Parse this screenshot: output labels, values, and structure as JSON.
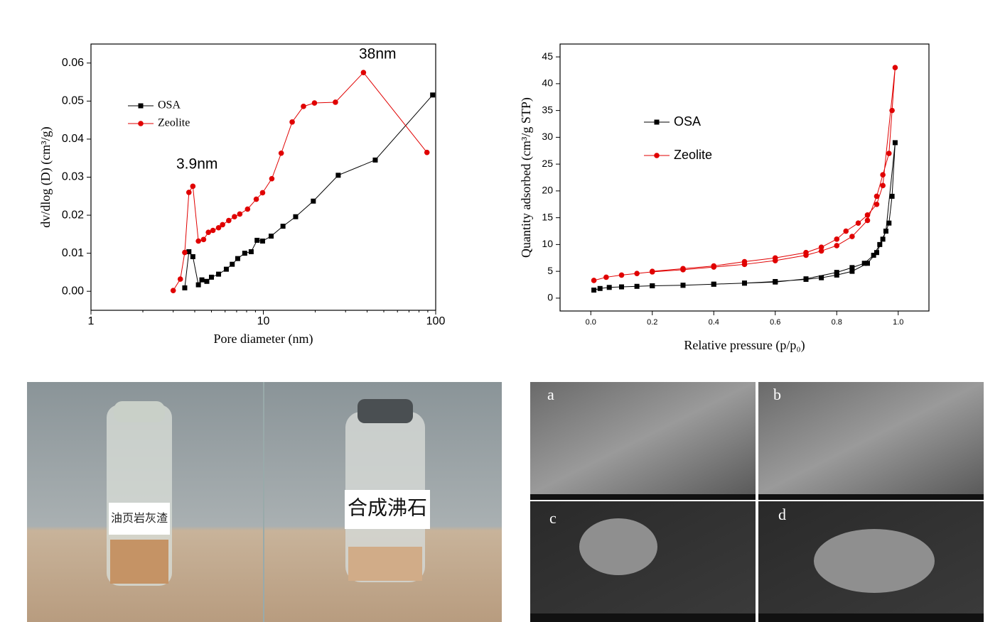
{
  "chart_data": [
    {
      "type": "line",
      "xscale": "log",
      "xlabel": "Pore diameter (nm)",
      "ylabel": "dv/dlog (D) (cm³/g)",
      "xlim": [
        1,
        100
      ],
      "xticks": [
        1,
        10,
        100
      ],
      "ylim": [
        -0.005,
        0.065
      ],
      "yticks": [
        {
          "value": 0,
          "label": "0.00"
        },
        {
          "value": 0.01,
          "label": "0.01"
        },
        {
          "value": 0.02,
          "label": "0.02"
        },
        {
          "value": 0.03,
          "label": "0.03"
        },
        {
          "value": 0.04,
          "label": "0.04"
        },
        {
          "value": 0.05,
          "label": "0.05"
        },
        {
          "value": 0.06,
          "label": "0.06"
        }
      ],
      "legend": "upper left",
      "annotations": [
        "3.9nm",
        "38nm"
      ],
      "series": [
        {
          "name": "OSA",
          "color": "#000000",
          "marker": "square",
          "x": [
            3.5,
            3.7,
            3.9,
            4.2,
            4.4,
            4.7,
            5.0,
            5.5,
            6.1,
            6.6,
            7.1,
            7.8,
            8.5,
            9.2,
            9.9,
            11.1,
            13.0,
            15.4,
            19.5,
            27.2,
            44.6,
            96
          ],
          "values": [
            0.0009,
            0.0104,
            0.0091,
            0.0017,
            0.003,
            0.0026,
            0.0037,
            0.0045,
            0.0058,
            0.0071,
            0.0086,
            0.01,
            0.0104,
            0.0134,
            0.0132,
            0.0145,
            0.0171,
            0.0196,
            0.0237,
            0.0305,
            0.0345,
            0.0516
          ]
        },
        {
          "name": "Zeolite",
          "color": "#e00000",
          "marker": "circle",
          "x": [
            3.0,
            3.3,
            3.5,
            3.7,
            3.9,
            4.2,
            4.5,
            4.8,
            5.1,
            5.5,
            5.8,
            6.3,
            6.8,
            7.3,
            8.1,
            9.1,
            9.9,
            11.2,
            12.7,
            14.7,
            17.1,
            19.8,
            26.2,
            38.1,
            89
          ],
          "values": [
            0.0002,
            0.0032,
            0.0102,
            0.026,
            0.0276,
            0.0132,
            0.0136,
            0.0155,
            0.016,
            0.0167,
            0.0175,
            0.0186,
            0.0196,
            0.0203,
            0.0216,
            0.0242,
            0.0259,
            0.0296,
            0.0363,
            0.0445,
            0.0486,
            0.0495,
            0.0497,
            0.0575,
            0.0365
          ]
        }
      ]
    },
    {
      "type": "line",
      "xscale": "linear",
      "xlabel": "Relative pressure (p/p₀)",
      "ylabel": "Quantity adsorbed (cm³/g STP)",
      "xlim": [
        -0.1,
        1.1
      ],
      "xticks": [
        {
          "value": 0,
          "label": "0.0"
        },
        {
          "value": 0.2,
          "label": "0.2"
        },
        {
          "value": 0.4,
          "label": "0.4"
        },
        {
          "value": 0.6,
          "label": "0.6"
        },
        {
          "value": 0.8,
          "label": "0.8"
        },
        {
          "value": 1,
          "label": "1.0"
        }
      ],
      "ylim": [
        -2.4,
        47.4
      ],
      "yticks": [
        0,
        5,
        10,
        15,
        20,
        25,
        30,
        35,
        40,
        45
      ],
      "legend": "center left",
      "series": [
        {
          "name": "OSA",
          "color": "#000000",
          "marker": "square",
          "x": [
            0.01,
            0.03,
            0.06,
            0.1,
            0.15,
            0.2,
            0.3,
            0.4,
            0.5,
            0.6,
            0.7,
            0.75,
            0.8,
            0.85,
            0.9,
            0.93,
            0.95,
            0.97,
            0.98,
            0.99,
            0.96,
            0.94,
            0.92,
            0.89,
            0.85,
            0.8,
            0.7,
            0.6,
            0.5,
            0.4,
            0.3,
            0.2
          ],
          "values": [
            1.5,
            1.8,
            2.0,
            2.1,
            2.2,
            2.3,
            2.4,
            2.6,
            2.8,
            3.1,
            3.5,
            3.8,
            4.3,
            5.0,
            6.5,
            8.5,
            11,
            14,
            19,
            29,
            12.5,
            10,
            8,
            6.5,
            5.7,
            4.8,
            3.6,
            3.0,
            2.8,
            2.6,
            2.4,
            2.3
          ]
        },
        {
          "name": "Zeolite",
          "color": "#e00000",
          "marker": "circle",
          "x": [
            0.01,
            0.05,
            0.1,
            0.15,
            0.2,
            0.3,
            0.4,
            0.5,
            0.6,
            0.7,
            0.75,
            0.8,
            0.85,
            0.9,
            0.93,
            0.95,
            0.97,
            0.98,
            0.99,
            0.95,
            0.93,
            0.9,
            0.87,
            0.83,
            0.8,
            0.75,
            0.7,
            0.6,
            0.5,
            0.4,
            0.3,
            0.2
          ],
          "values": [
            3.3,
            3.9,
            4.3,
            4.6,
            4.9,
            5.3,
            5.8,
            6.3,
            7.0,
            8.0,
            8.8,
            9.8,
            11.5,
            14.5,
            19,
            23,
            27,
            35,
            43,
            21,
            17.5,
            15.5,
            14,
            12.5,
            11,
            9.5,
            8.5,
            7.5,
            6.8,
            6.0,
            5.5,
            5.0
          ]
        }
      ]
    }
  ],
  "photos": {
    "left_label": "油页岩灰渣",
    "right_label": "合成沸石",
    "sem_labels": [
      "a",
      "b",
      "c",
      "d"
    ]
  }
}
